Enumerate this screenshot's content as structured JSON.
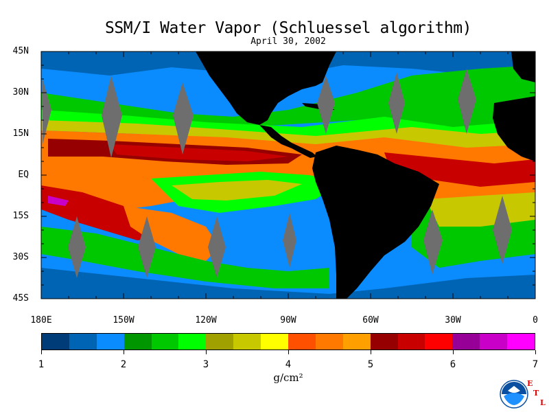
{
  "title": "SSM/I Water Vapor (Schluessel algorithm)",
  "subtitle": "April 30, 2002",
  "map": {
    "lat_labels": [
      "45N",
      "30N",
      "15N",
      "EQ",
      "15S",
      "30S",
      "45S"
    ],
    "lon_labels": [
      "180E",
      "150W",
      "120W",
      "90W",
      "60W",
      "30W",
      "0"
    ],
    "lat_values": [
      45,
      30,
      15,
      0,
      -15,
      -30,
      -45
    ],
    "lon_values": [
      -180,
      -150,
      -120,
      -90,
      -60,
      -30,
      0
    ],
    "lat_range": [
      -45,
      45
    ],
    "lon_range": [
      -180,
      0
    ],
    "land_color": "#000000",
    "gap_color": "#6e6e6e"
  },
  "colorbar": {
    "colors": [
      "#003c78",
      "#0064b4",
      "#0a8cff",
      "#009600",
      "#00c800",
      "#00ff00",
      "#a0a000",
      "#c8c800",
      "#ffff00",
      "#ff5000",
      "#ff7800",
      "#ffa000",
      "#960000",
      "#c80000",
      "#ff0000",
      "#960096",
      "#c800c8",
      "#ff00ff"
    ],
    "tick_labels": [
      "1",
      "2",
      "3",
      "4",
      "5",
      "6",
      "7"
    ],
    "tick_values": [
      1,
      2,
      3,
      4,
      5,
      6,
      7
    ],
    "unit": "g/cm²"
  },
  "logos": {
    "noaa_text": "NOAA",
    "etl_letters": [
      "E",
      "T",
      "L"
    ]
  }
}
